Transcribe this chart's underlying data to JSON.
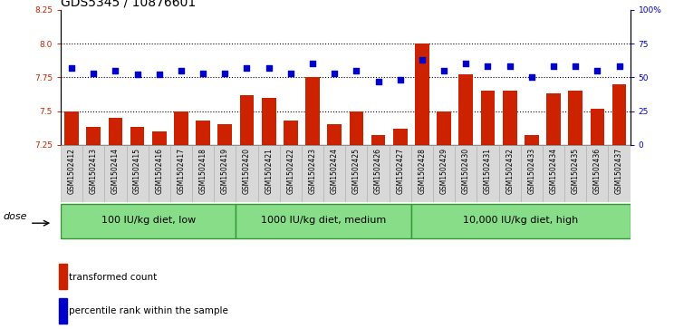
{
  "title": "GDS5345 / 10876601",
  "samples": [
    "GSM1502412",
    "GSM1502413",
    "GSM1502414",
    "GSM1502415",
    "GSM1502416",
    "GSM1502417",
    "GSM1502418",
    "GSM1502419",
    "GSM1502420",
    "GSM1502421",
    "GSM1502422",
    "GSM1502423",
    "GSM1502424",
    "GSM1502425",
    "GSM1502426",
    "GSM1502427",
    "GSM1502428",
    "GSM1502429",
    "GSM1502430",
    "GSM1502431",
    "GSM1502432",
    "GSM1502433",
    "GSM1502434",
    "GSM1502435",
    "GSM1502436",
    "GSM1502437"
  ],
  "bar_values": [
    7.5,
    7.38,
    7.45,
    7.38,
    7.35,
    7.5,
    7.43,
    7.4,
    7.62,
    7.6,
    7.43,
    7.75,
    7.4,
    7.5,
    7.32,
    7.37,
    8.0,
    7.5,
    7.77,
    7.65,
    7.65,
    7.32,
    7.63,
    7.65,
    7.52,
    7.7
  ],
  "dot_values": [
    57,
    53,
    55,
    52,
    52,
    55,
    53,
    53,
    57,
    57,
    53,
    60,
    53,
    55,
    47,
    48,
    63,
    55,
    60,
    58,
    58,
    50,
    58,
    58,
    55,
    58
  ],
  "y_min": 7.25,
  "y_max": 8.25,
  "y_ticks": [
    7.25,
    7.5,
    7.75,
    8.0,
    8.25
  ],
  "y2_ticks": [
    0,
    25,
    50,
    75,
    100
  ],
  "groups": [
    {
      "label": "100 IU/kg diet, low",
      "start": 0,
      "end": 8
    },
    {
      "label": "1000 IU/kg diet, medium",
      "start": 8,
      "end": 16
    },
    {
      "label": "10,000 IU/kg diet, high",
      "start": 16,
      "end": 26
    }
  ],
  "bar_color": "#cc2200",
  "dot_color": "#0000cc",
  "group_fill": "#88dd88",
  "group_edge": "#339933",
  "grid_color": "#000000",
  "bg_plot": "#ffffff",
  "bg_cell": "#d8d8d8",
  "cell_edge": "#aaaaaa",
  "legend_bar": "transformed count",
  "legend_dot": "percentile rank within the sample",
  "dose_label": "dose",
  "title_fontsize": 10,
  "tick_fontsize": 6.5,
  "sample_fontsize": 5.5,
  "group_fontsize": 8,
  "legend_fontsize": 7.5
}
